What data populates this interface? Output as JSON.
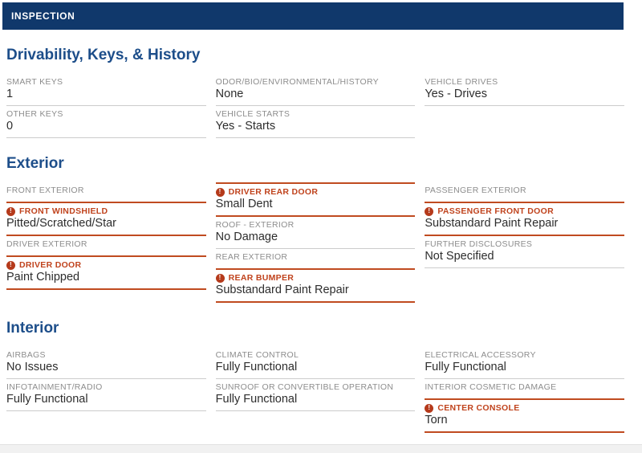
{
  "header": {
    "title": "INSPECTION"
  },
  "colors": {
    "header_bg": "#10386b",
    "section_title": "#1d4e8a",
    "flag_accent": "#c04b20",
    "flag_icon_bg": "#b53a1b",
    "label_gray": "#8d8d8d",
    "value_dark": "#2d2d2d",
    "divider_gray": "#cccccc"
  },
  "icons": {
    "alert": {
      "name": "alert-icon",
      "glyph": "!"
    }
  },
  "sections": [
    {
      "title": "Drivability, Keys, & History",
      "columns": [
        [
          {
            "type": "normal",
            "label": "SMART KEYS",
            "value": "1"
          },
          {
            "type": "normal",
            "label": "OTHER KEYS",
            "value": "0"
          }
        ],
        [
          {
            "type": "normal",
            "label": "ODOR/BIO/ENVIRONMENTAL/HISTORY",
            "value": "None"
          },
          {
            "type": "normal",
            "label": "VEHICLE STARTS",
            "value": "Yes - Starts"
          }
        ],
        [
          {
            "type": "normal",
            "label": "VEHICLE DRIVES",
            "value": "Yes - Drives"
          }
        ]
      ]
    },
    {
      "title": "Exterior",
      "columns": [
        [
          {
            "type": "group",
            "label": "FRONT EXTERIOR"
          },
          {
            "type": "flagged",
            "label": "FRONT WINDSHIELD",
            "value": "Pitted/Scratched/Star"
          },
          {
            "type": "group",
            "label": "DRIVER EXTERIOR"
          },
          {
            "type": "flagged",
            "label": "DRIVER DOOR",
            "value": "Paint Chipped"
          }
        ],
        [
          {
            "type": "flagged",
            "label": "DRIVER REAR DOOR",
            "value": "Small Dent"
          },
          {
            "type": "normal",
            "label": "ROOF - EXTERIOR",
            "value": "No Damage"
          },
          {
            "type": "group",
            "label": "REAR EXTERIOR"
          },
          {
            "type": "flagged",
            "label": "REAR BUMPER",
            "value": "Substandard Paint Repair"
          }
        ],
        [
          {
            "type": "group",
            "label": "PASSENGER EXTERIOR"
          },
          {
            "type": "flagged",
            "label": "PASSENGER FRONT DOOR",
            "value": "Substandard Paint Repair"
          },
          {
            "type": "normal",
            "label": "FURTHER DISCLOSURES",
            "value": "Not Specified"
          }
        ]
      ]
    },
    {
      "title": "Interior",
      "columns": [
        [
          {
            "type": "normal",
            "label": "AIRBAGS",
            "value": "No Issues"
          },
          {
            "type": "normal",
            "label": "INFOTAINMENT/RADIO",
            "value": "Fully Functional"
          }
        ],
        [
          {
            "type": "normal",
            "label": "CLIMATE CONTROL",
            "value": "Fully Functional"
          },
          {
            "type": "normal",
            "label": "SUNROOF OR CONVERTIBLE OPERATION",
            "value": "Fully Functional"
          }
        ],
        [
          {
            "type": "normal",
            "label": "ELECTRICAL ACCESSORY",
            "value": "Fully Functional"
          },
          {
            "type": "group",
            "label": "INTERIOR COSMETIC DAMAGE"
          },
          {
            "type": "flagged",
            "label": "CENTER CONSOLE",
            "value": "Torn"
          }
        ]
      ]
    }
  ]
}
